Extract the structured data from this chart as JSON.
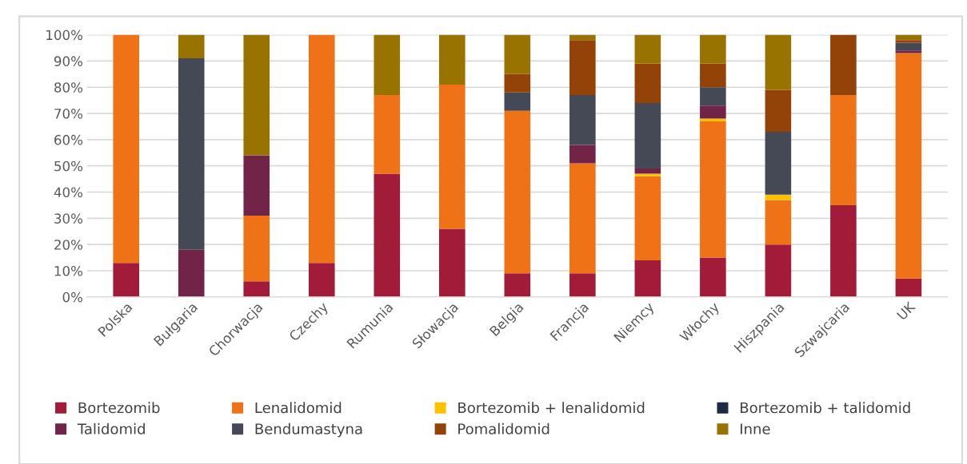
{
  "chart_data": {
    "type": "bar",
    "stacked": true,
    "categories": [
      "Polska",
      "Bułgaria",
      "Chorwacja",
      "Czechy",
      "Rumunia",
      "Słowacja",
      "Belgia",
      "Francja",
      "Niemcy",
      "Włochy",
      "Hiszpania",
      "Szwajcaria",
      "UK"
    ],
    "series": [
      {
        "name": "Bortezomib",
        "color": "#a21b38",
        "values": [
          13,
          0,
          6,
          13,
          47,
          26,
          9,
          9,
          14,
          15,
          20,
          35,
          7
        ]
      },
      {
        "name": "Lenalidomid",
        "color": "#ef7217",
        "values": [
          87,
          0,
          25,
          87,
          30,
          55,
          62,
          42,
          32,
          52,
          17,
          42,
          86
        ]
      },
      {
        "name": "Bortezomib + lenalidomid",
        "color": "#ffc000",
        "values": [
          0,
          0,
          0,
          0,
          0,
          0,
          0,
          0,
          1,
          1,
          2,
          0,
          0
        ]
      },
      {
        "name": "Bortezomib + talidomid",
        "color": "#1f2a44",
        "values": [
          0,
          0,
          0,
          0,
          0,
          0,
          0,
          0,
          0,
          0,
          0,
          0,
          0
        ]
      },
      {
        "name": "Talidomid",
        "color": "#722448",
        "values": [
          0,
          18,
          23,
          0,
          0,
          0,
          0,
          7,
          2,
          5,
          0,
          0,
          1
        ]
      },
      {
        "name": "Bendumastyna",
        "color": "#454955",
        "values": [
          0,
          73,
          0,
          0,
          0,
          0,
          7,
          19,
          25,
          7,
          24,
          0,
          3
        ]
      },
      {
        "name": "Pomalidomid",
        "color": "#934208",
        "values": [
          0,
          0,
          0,
          0,
          0,
          0,
          7,
          21,
          15,
          9,
          16,
          23,
          1
        ]
      },
      {
        "name": "Inne",
        "color": "#997300",
        "values": [
          0,
          9,
          46,
          0,
          23,
          19,
          15,
          2,
          11,
          11,
          21,
          0,
          2
        ]
      }
    ],
    "ylim": [
      0,
      100
    ],
    "yticks": [
      {
        "value": 0,
        "label": "0%"
      },
      {
        "value": 10,
        "label": "10%"
      },
      {
        "value": 20,
        "label": "20%"
      },
      {
        "value": 30,
        "label": "30%"
      },
      {
        "value": 40,
        "label": "40%"
      },
      {
        "value": 50,
        "label": "50%"
      },
      {
        "value": 60,
        "label": "60%"
      },
      {
        "value": 70,
        "label": "70%"
      },
      {
        "value": 80,
        "label": "80%"
      },
      {
        "value": 90,
        "label": "90%"
      },
      {
        "value": 100,
        "label": "100%"
      }
    ],
    "grid": "y",
    "legend": "bottom"
  }
}
